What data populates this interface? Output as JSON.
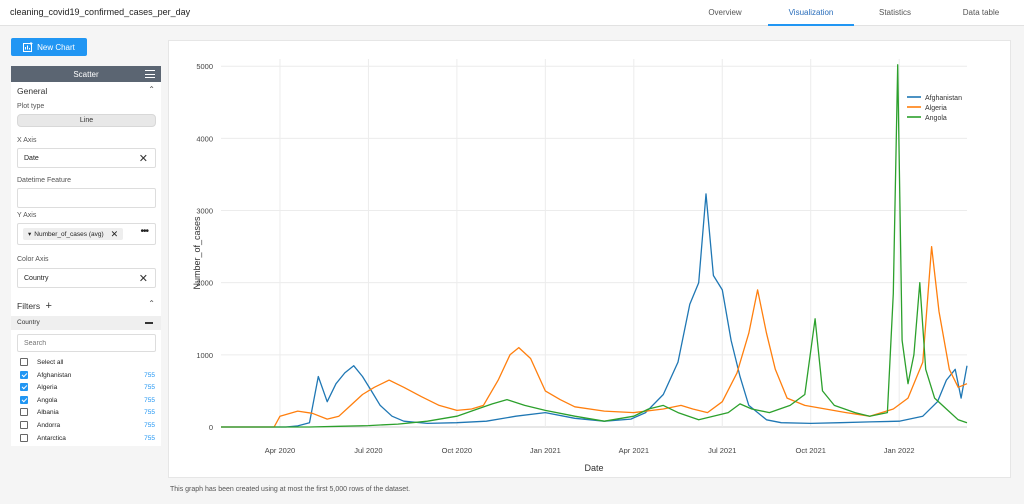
{
  "app": {
    "title": "cleaning_covid19_confirmed_cases_per_day"
  },
  "tabs": [
    {
      "label": "Overview"
    },
    {
      "label": "Visualization"
    },
    {
      "label": "Statistics"
    },
    {
      "label": "Data table"
    }
  ],
  "toolbar": {
    "new_chart": "New Chart"
  },
  "sidebar": {
    "header": "Scatter",
    "general": "General",
    "plot_type_label": "Plot type",
    "plot_type_value": "Line",
    "x_axis_label": "X Axis",
    "x_axis_value": "Date",
    "datetime_label": "Datetime Feature",
    "y_axis_label": "Y Axis",
    "y_axis_value": "Number_of_cases (avg)",
    "color_axis_label": "Color Axis",
    "color_axis_value": "Country",
    "filters": "Filters",
    "country": "Country",
    "search_placeholder": "Search",
    "countries": [
      {
        "name": "Select all",
        "count": "",
        "checked": false
      },
      {
        "name": "Afghanistan",
        "count": "755",
        "checked": true
      },
      {
        "name": "Algeria",
        "count": "755",
        "checked": true
      },
      {
        "name": "Angola",
        "count": "755",
        "checked": true
      },
      {
        "name": "Albania",
        "count": "755",
        "checked": false
      },
      {
        "name": "Andorra",
        "count": "755",
        "checked": false
      },
      {
        "name": "Antarctica",
        "count": "755",
        "checked": false
      }
    ]
  },
  "footnote": "This graph has been created using at most the first 5,000 rows of the dataset.",
  "chart_data": {
    "type": "line",
    "xlabel": "Date",
    "ylabel": "Number_of_cases",
    "x_tick_labels": [
      "Apr 2020",
      "Jul 2020",
      "Oct 2020",
      "Jan 2021",
      "Apr 2021",
      "Jul 2021",
      "Oct 2021",
      "Jan 2022"
    ],
    "y_ticks": [
      0,
      1000,
      2000,
      3000,
      4000,
      5000
    ],
    "ylim": [
      0,
      5100
    ],
    "x_month_range": [
      0,
      25.3
    ],
    "x_tick_months": [
      2,
      5,
      8,
      11,
      14,
      17,
      20,
      23
    ],
    "legend_position": "top-right",
    "series": [
      {
        "name": "Afghanistan",
        "color": "#1f77b4",
        "points": [
          [
            0,
            0
          ],
          [
            2.2,
            0
          ],
          [
            2.6,
            15
          ],
          [
            3,
            60
          ],
          [
            3.3,
            700
          ],
          [
            3.6,
            350
          ],
          [
            3.9,
            600
          ],
          [
            4.2,
            750
          ],
          [
            4.5,
            850
          ],
          [
            4.8,
            700
          ],
          [
            5.1,
            500
          ],
          [
            5.4,
            300
          ],
          [
            5.8,
            150
          ],
          [
            6.2,
            80
          ],
          [
            7,
            50
          ],
          [
            8,
            60
          ],
          [
            9,
            80
          ],
          [
            10,
            150
          ],
          [
            11,
            200
          ],
          [
            12,
            120
          ],
          [
            13,
            80
          ],
          [
            13.9,
            110
          ],
          [
            14.4,
            200
          ],
          [
            15,
            450
          ],
          [
            15.5,
            900
          ],
          [
            15.9,
            1700
          ],
          [
            16.2,
            2000
          ],
          [
            16.45,
            3230
          ],
          [
            16.7,
            2100
          ],
          [
            17,
            1900
          ],
          [
            17.3,
            1200
          ],
          [
            17.6,
            700
          ],
          [
            17.9,
            300
          ],
          [
            18.5,
            100
          ],
          [
            19,
            60
          ],
          [
            20,
            50
          ],
          [
            21,
            60
          ],
          [
            22,
            70
          ],
          [
            23,
            80
          ],
          [
            23.8,
            150
          ],
          [
            24.3,
            350
          ],
          [
            24.6,
            650
          ],
          [
            24.9,
            800
          ],
          [
            25.1,
            400
          ],
          [
            25.3,
            850
          ]
        ]
      },
      {
        "name": "Algeria",
        "color": "#ff7f0e",
        "points": [
          [
            0,
            0
          ],
          [
            1.8,
            0
          ],
          [
            2,
            150
          ],
          [
            2.6,
            220
          ],
          [
            3.1,
            190
          ],
          [
            3.6,
            110
          ],
          [
            4,
            150
          ],
          [
            4.4,
            300
          ],
          [
            4.8,
            450
          ],
          [
            5.2,
            550
          ],
          [
            5.7,
            650
          ],
          [
            6.2,
            550
          ],
          [
            6.8,
            420
          ],
          [
            7.4,
            300
          ],
          [
            8,
            230
          ],
          [
            8.5,
            250
          ],
          [
            8.9,
            300
          ],
          [
            9.4,
            650
          ],
          [
            9.8,
            1000
          ],
          [
            10.1,
            1100
          ],
          [
            10.5,
            950
          ],
          [
            11,
            500
          ],
          [
            11.5,
            380
          ],
          [
            12,
            280
          ],
          [
            13,
            220
          ],
          [
            14,
            200
          ],
          [
            15,
            250
          ],
          [
            15.6,
            300
          ],
          [
            16,
            250
          ],
          [
            16.5,
            200
          ],
          [
            17,
            350
          ],
          [
            17.5,
            750
          ],
          [
            17.9,
            1300
          ],
          [
            18.2,
            1900
          ],
          [
            18.5,
            1300
          ],
          [
            18.8,
            800
          ],
          [
            19.2,
            400
          ],
          [
            19.8,
            300
          ],
          [
            20.5,
            250
          ],
          [
            21.2,
            200
          ],
          [
            22,
            150
          ],
          [
            22.8,
            250
          ],
          [
            23.3,
            400
          ],
          [
            23.8,
            900
          ],
          [
            24.1,
            2500
          ],
          [
            24.35,
            1600
          ],
          [
            24.7,
            800
          ],
          [
            25,
            550
          ],
          [
            25.3,
            600
          ]
        ]
      },
      {
        "name": "Angola",
        "color": "#2ca02c",
        "points": [
          [
            0,
            0
          ],
          [
            3,
            0
          ],
          [
            4,
            10
          ],
          [
            5,
            20
          ],
          [
            6,
            40
          ],
          [
            7,
            80
          ],
          [
            8,
            150
          ],
          [
            8.7,
            250
          ],
          [
            9.2,
            320
          ],
          [
            9.7,
            380
          ],
          [
            10.3,
            300
          ],
          [
            11,
            230
          ],
          [
            12,
            150
          ],
          [
            13,
            80
          ],
          [
            14,
            150
          ],
          [
            14.5,
            250
          ],
          [
            15,
            300
          ],
          [
            15.5,
            200
          ],
          [
            16.2,
            100
          ],
          [
            17.2,
            200
          ],
          [
            17.6,
            320
          ],
          [
            18,
            250
          ],
          [
            18.6,
            200
          ],
          [
            19.3,
            300
          ],
          [
            19.8,
            450
          ],
          [
            20.15,
            1500
          ],
          [
            20.4,
            500
          ],
          [
            20.8,
            300
          ],
          [
            21.5,
            200
          ],
          [
            22,
            150
          ],
          [
            22.6,
            200
          ],
          [
            22.8,
            1850
          ],
          [
            22.95,
            5020
          ],
          [
            23.1,
            1200
          ],
          [
            23.3,
            600
          ],
          [
            23.5,
            1000
          ],
          [
            23.7,
            2000
          ],
          [
            23.9,
            800
          ],
          [
            24.2,
            400
          ],
          [
            24.6,
            250
          ],
          [
            25,
            100
          ],
          [
            25.3,
            60
          ]
        ]
      }
    ]
  }
}
